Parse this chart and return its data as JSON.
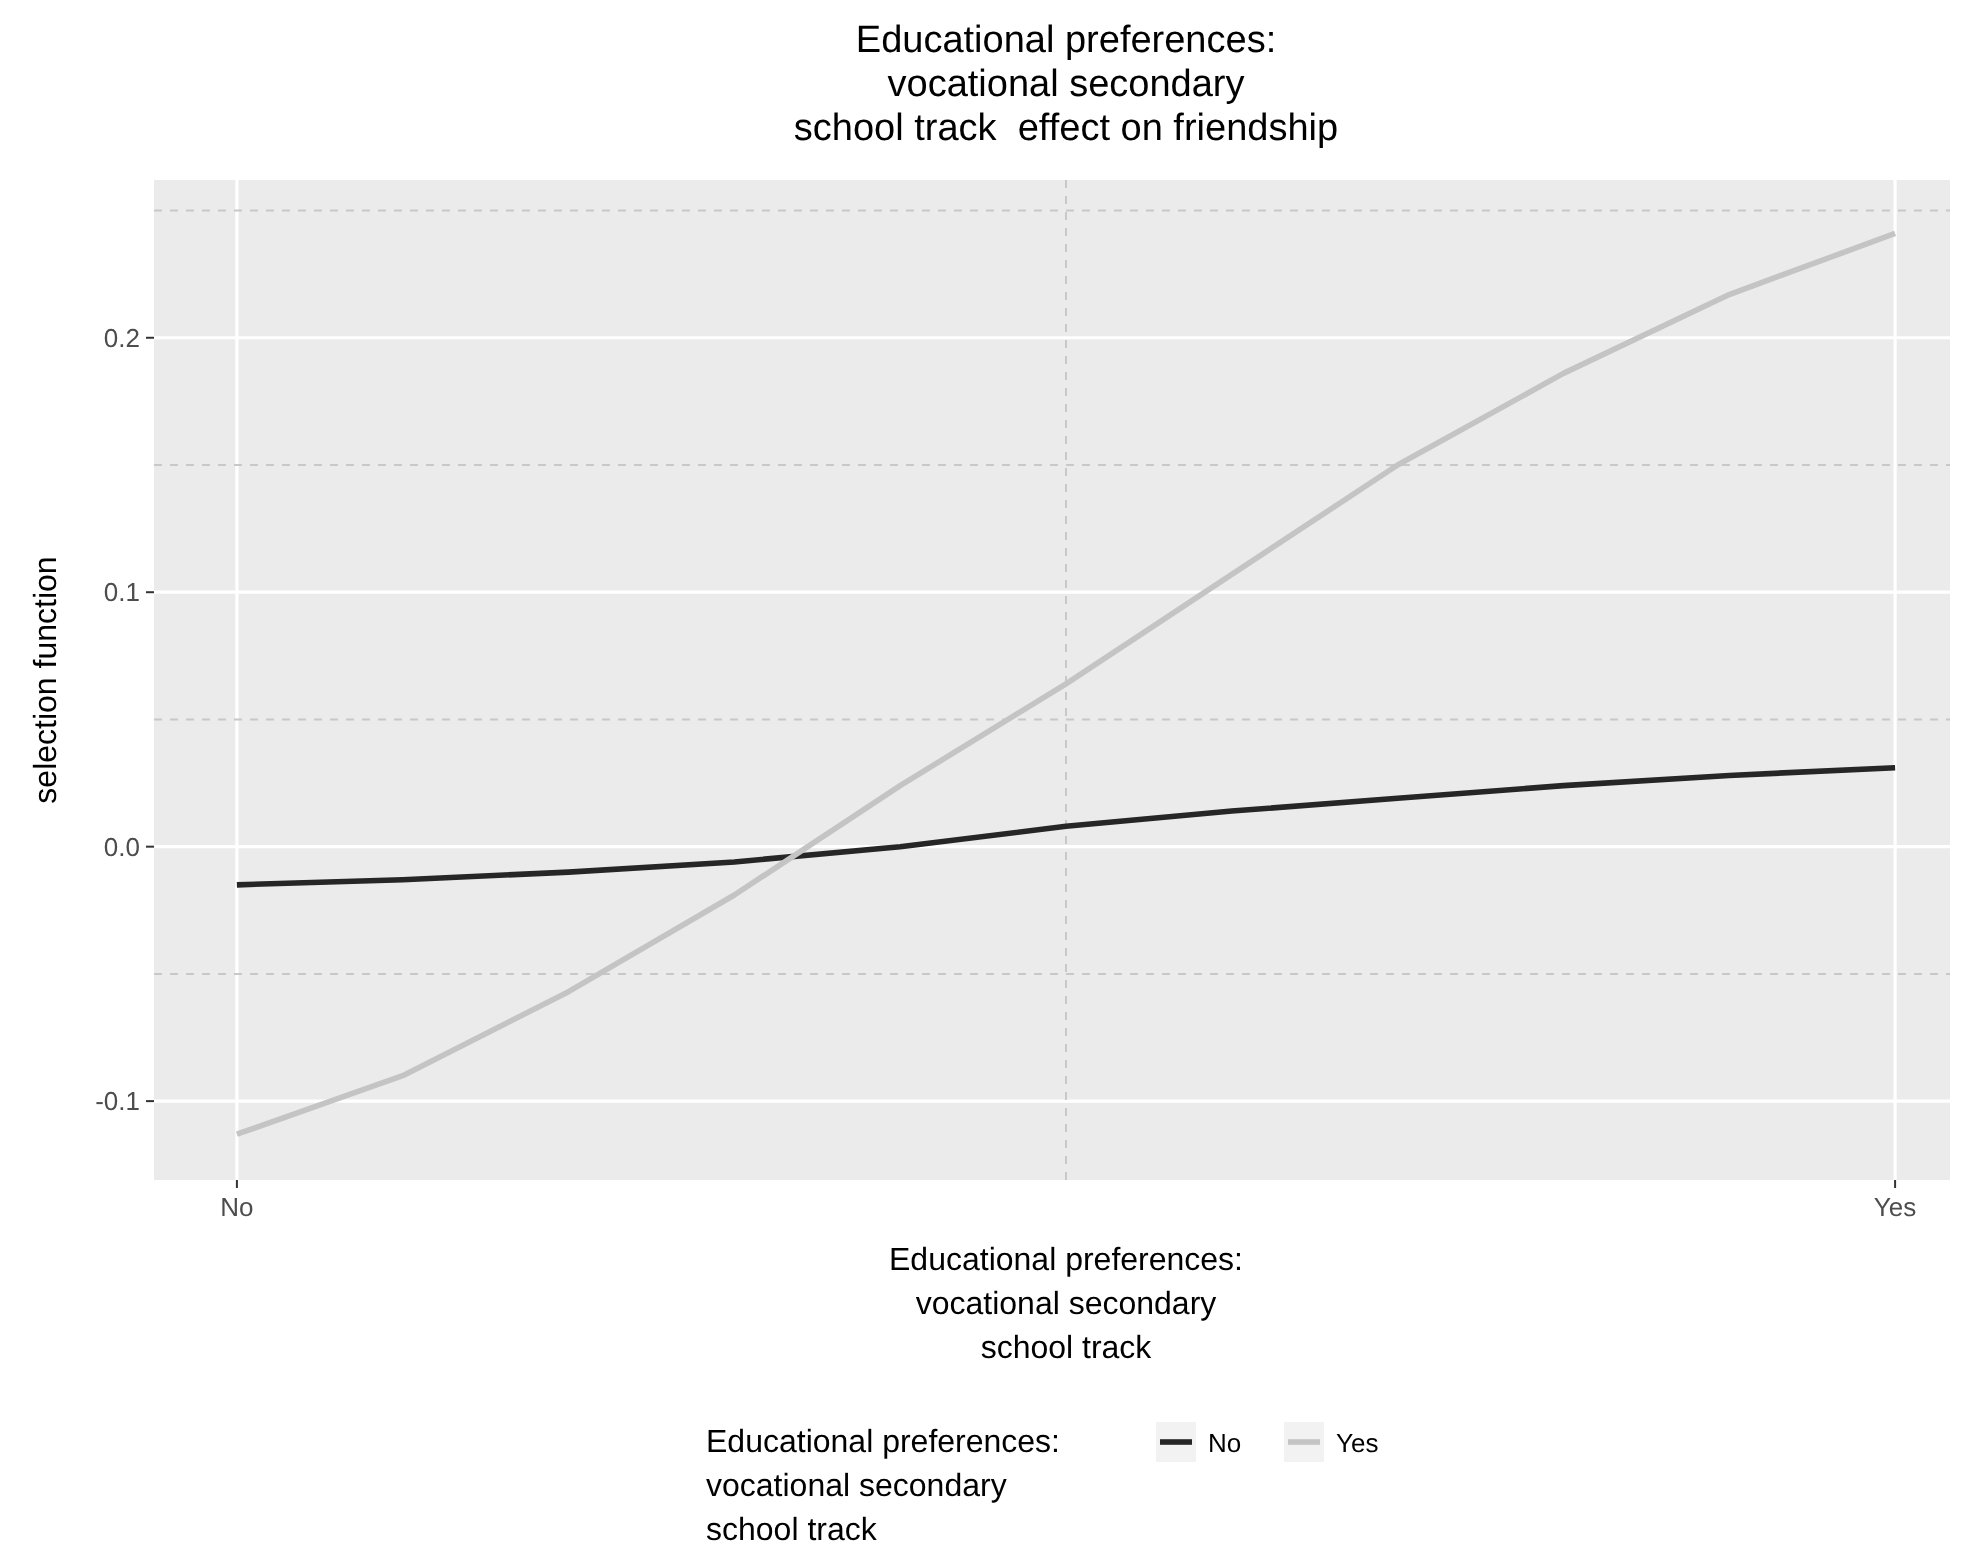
{
  "chart_data": {
    "type": "line",
    "title": "Educational preferences:\nvocational secondary\nschool track  effect on friendship",
    "xlabel": "Educational preferences:\nvocational secondary\nschool track",
    "ylabel": "selection function",
    "legend_title": "Educational preferences:\nvocational secondary\nschool track",
    "legend": "bottom",
    "grid": true,
    "categories": [
      "No",
      null,
      null,
      null,
      null,
      null,
      null,
      null,
      null,
      null,
      "Yes"
    ],
    "ylim": [
      -0.131,
      0.262
    ],
    "yticks": [
      -0.1,
      {
        "value": 0,
        "label": "0.0"
      },
      0.1,
      0.2
    ],
    "series": [
      {
        "name": "No",
        "color": "#262626",
        "values": [
          -0.015,
          -0.013,
          -0.01,
          -0.006,
          0,
          0.008,
          0.014,
          0.019,
          0.024,
          0.028,
          0.031
        ]
      },
      {
        "name": "Yes",
        "color": "#c4c4c4",
        "values": [
          -0.113,
          -0.09,
          -0.057,
          -0.019,
          0.024,
          0.064,
          0.107,
          0.15,
          0.186,
          0.217,
          0.241
        ]
      }
    ],
    "ref_lines": [
      {
        "axis": "y",
        "value": -0.05,
        "color": "#c8c8c8",
        "line_style": "dashed"
      },
      {
        "axis": "y",
        "value": 0.05,
        "color": "#c8c8c8",
        "line_style": "dashed"
      },
      {
        "axis": "y",
        "value": 0.15,
        "color": "#c8c8c8",
        "line_style": "dashed"
      },
      {
        "axis": "y",
        "value": 0.25,
        "color": "#c8c8c8",
        "line_style": "dashed"
      }
    ]
  }
}
